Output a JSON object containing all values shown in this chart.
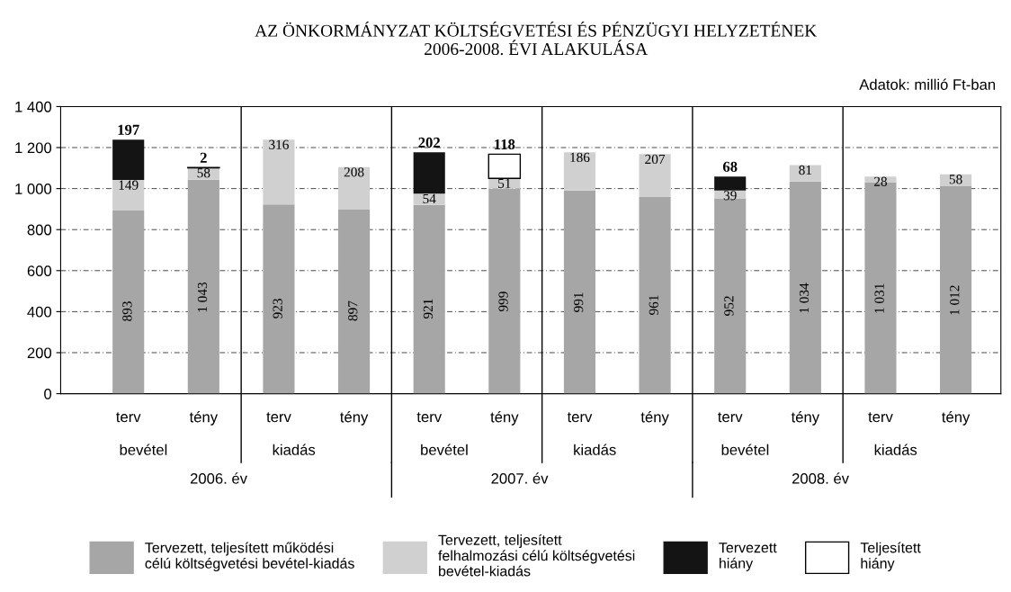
{
  "chart_data": {
    "type": "bar",
    "stacked": true,
    "title": "AZ ÖNKORMÁNYZAT KÖLTSÉGVETÉSI ÉS PÉNZÜGYI HELYZETÉNEK\n2006-2008. ÉVI ALAKULÁSA",
    "subtitle": "Adatok: millió Ft-ban",
    "categories": [
      "terv",
      "tény",
      "terv",
      "tény",
      "terv",
      "tény",
      "terv",
      "tény",
      "terv",
      "tény",
      "terv",
      "tény"
    ],
    "series": [
      {
        "name": "Tervezett, teljesített működési\ncélú költségvetési bevétel-kiadás",
        "color": "#a6a6a6",
        "values": [
          893,
          1043,
          923,
          897,
          921,
          999,
          991,
          961,
          952,
          1034,
          1031,
          1012
        ],
        "value_labels": [
          "893",
          "1 043",
          "923",
          "897",
          "921",
          "999",
          "991",
          "961",
          "952",
          "1 034",
          "1 031",
          "1 012"
        ]
      },
      {
        "name": "Tervezett, teljesített\nfelhalmozási célú költségvetési\nbevétel-kiadás",
        "color": "#d0d0d0",
        "values": [
          149,
          58,
          316,
          208,
          54,
          51,
          186,
          207,
          39,
          81,
          28,
          58
        ],
        "value_labels": [
          "149",
          "58",
          "316",
          "208",
          "54",
          "51",
          "186",
          "207",
          "39",
          "81",
          "28",
          "58"
        ]
      },
      {
        "name": "Tervezett\nhiány",
        "color": "#141414",
        "values": [
          197,
          null,
          null,
          null,
          202,
          null,
          null,
          null,
          68,
          null,
          null,
          null
        ],
        "value_labels": [
          "197",
          null,
          null,
          null,
          "202",
          null,
          null,
          null,
          "68",
          null,
          null,
          null
        ]
      },
      {
        "name": "Teljesített\nhiány",
        "color": "#ffffff",
        "values": [
          null,
          2,
          null,
          null,
          null,
          118,
          null,
          null,
          null,
          null,
          null,
          null
        ],
        "value_labels": [
          null,
          "2",
          null,
          null,
          null,
          "118",
          null,
          null,
          null,
          null,
          null,
          null
        ]
      }
    ],
    "ylim": [
      0,
      1400
    ],
    "yticks": [
      0,
      200,
      400,
      600,
      800,
      {
        "value": 1000,
        "label": "1 000"
      },
      {
        "value": 1200,
        "label": "1 200"
      },
      {
        "value": 1400,
        "label": "1 400"
      }
    ],
    "grid": "y",
    "legend": "bottom",
    "annotations": [
      "bevétel",
      "kiadás",
      "bevétel",
      "kiadás",
      "bevétel",
      "kiadás",
      "2006. év",
      "2007. év",
      "2008. év"
    ]
  }
}
